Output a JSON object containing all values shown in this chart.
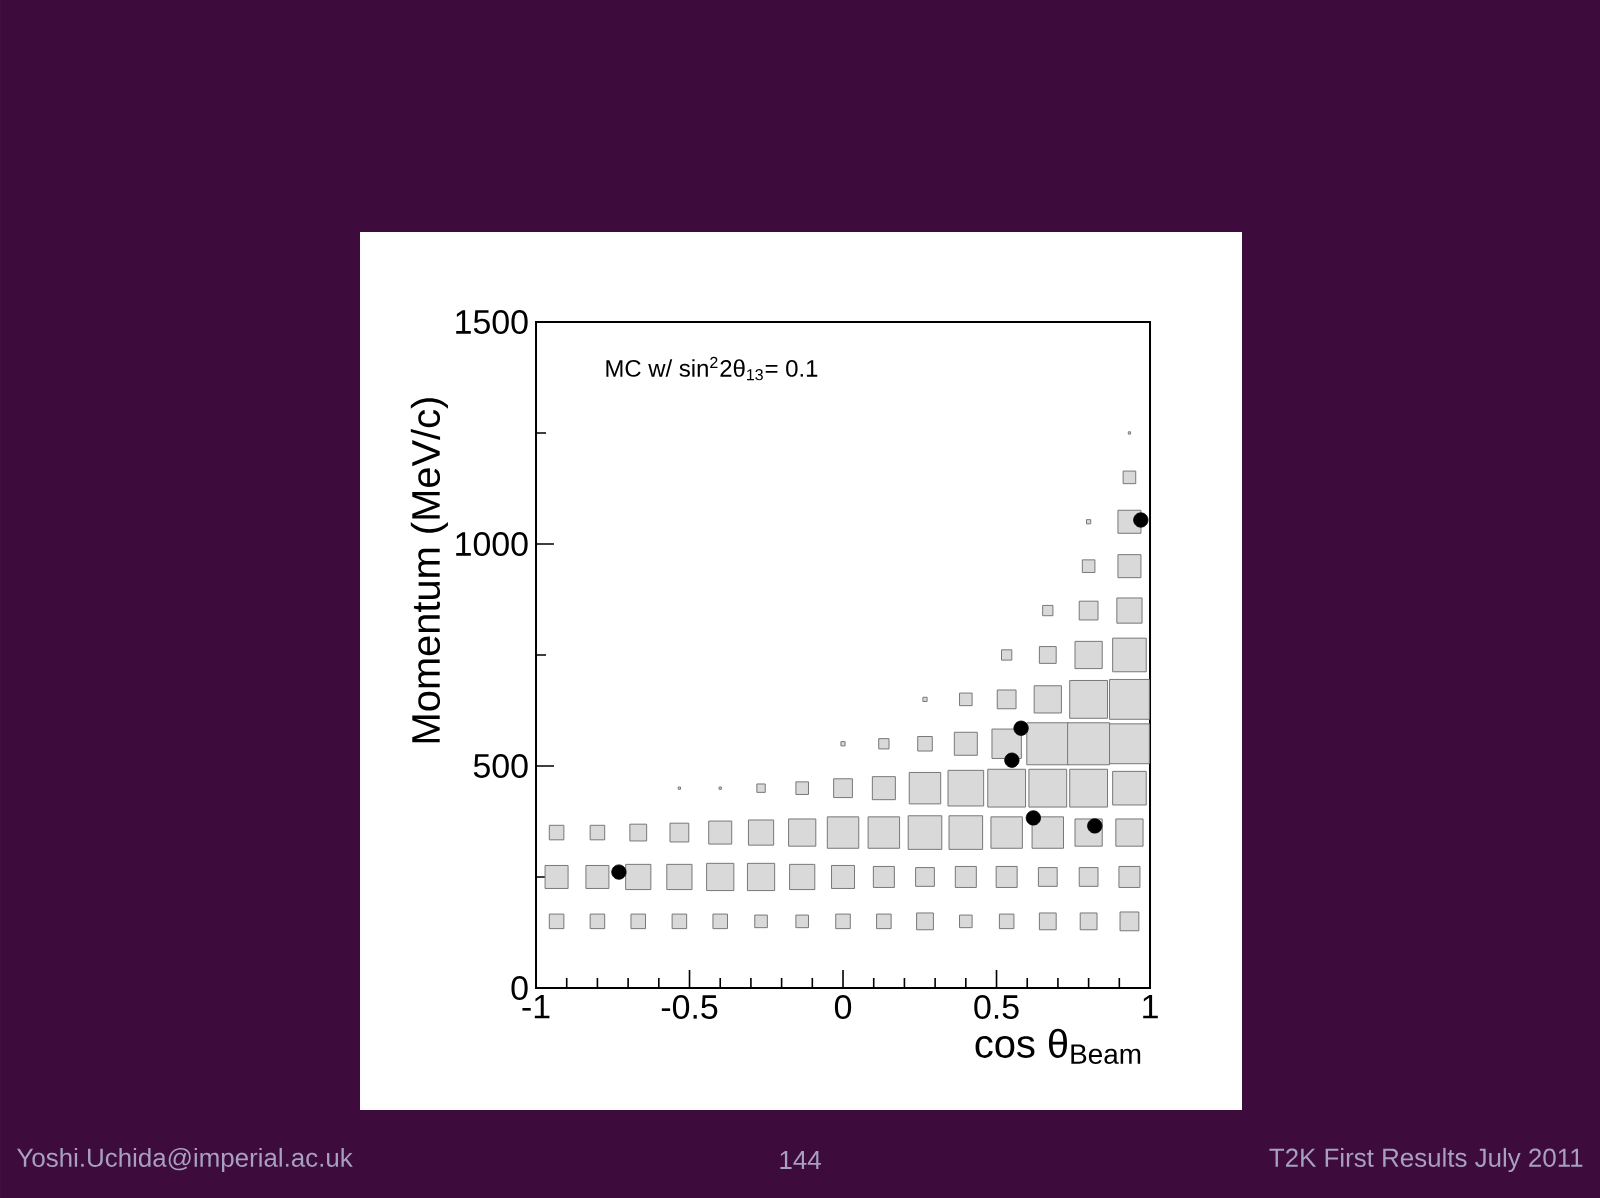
{
  "chart_data": {
    "type": "bubble",
    "xlabel": "cos θ$_{Beam}$",
    "ylabel": "Momentum (MeV/c)",
    "annotations": [
      "MC w/ sin$^{2}$2θ$_{13}$= 0.1",
      "Yoshi.Uchida@imperial.ac.uk",
      "144",
      "T2K First Results July 2011"
    ],
    "xlim": [
      -1,
      1
    ],
    "ylim": [
      0,
      1500
    ],
    "xticks": [
      -1,
      -0.5,
      0,
      0.5,
      1
    ],
    "yticks": [
      0,
      500,
      1000,
      1500
    ],
    "series": [
      {
        "marker": "square",
        "color": "#d9d9d9",
        "x": [
          -0.933,
          -0.8,
          -0.667,
          -0.533,
          -0.4,
          -0.267,
          -0.133,
          0,
          0.133,
          0.267,
          0.4,
          0.533,
          0.667,
          0.8,
          0.933,
          -0.933,
          -0.8,
          -0.667,
          -0.533,
          -0.4,
          -0.267,
          -0.133,
          0,
          0.133,
          0.267,
          0.4,
          0.533,
          0.667,
          0.8,
          0.933,
          -0.933,
          -0.8,
          -0.667,
          -0.533,
          -0.4,
          -0.267,
          -0.133,
          0,
          0.133,
          0.267,
          0.4,
          0.533,
          0.667,
          0.8,
          0.933,
          -0.533,
          -0.4,
          -0.267,
          -0.133,
          0,
          0.133,
          0.267,
          0.4,
          0.533,
          0.667,
          0.8,
          0.933,
          0,
          0.133,
          0.267,
          0.4,
          0.533,
          0.667,
          0.8,
          0.933,
          0.267,
          0.4,
          0.533,
          0.667,
          0.8,
          0.933,
          0.533,
          0.667,
          0.8,
          0.933,
          0.667,
          0.8,
          0.933,
          0.8,
          0.933,
          0.8,
          0.933,
          0.933,
          0.933
        ],
        "values": [
          150,
          150,
          150,
          150,
          150,
          150,
          150,
          150,
          150,
          150,
          150,
          150,
          150,
          150,
          150,
          250,
          250,
          250,
          250,
          250,
          250,
          250,
          250,
          250,
          250,
          250,
          250,
          250,
          250,
          250,
          350,
          350,
          350,
          350,
          350,
          350,
          350,
          350,
          350,
          350,
          350,
          350,
          350,
          350,
          350,
          450,
          450,
          450,
          450,
          450,
          450,
          450,
          450,
          450,
          450,
          450,
          450,
          550,
          550,
          550,
          550,
          550,
          550,
          550,
          550,
          650,
          650,
          650,
          650,
          650,
          650,
          750,
          750,
          750,
          750,
          850,
          850,
          850,
          950,
          950,
          1050,
          1050,
          1150,
          1250
        ],
        "sizes": [
          0.12,
          0.12,
          0.12,
          0.12,
          0.12,
          0.09,
          0.09,
          0.12,
          0.12,
          0.16,
          0.09,
          0.12,
          0.16,
          0.16,
          0.2,
          0.3,
          0.3,
          0.36,
          0.36,
          0.42,
          0.42,
          0.36,
          0.3,
          0.25,
          0.2,
          0.25,
          0.25,
          0.2,
          0.2,
          0.25,
          0.12,
          0.12,
          0.16,
          0.2,
          0.3,
          0.36,
          0.42,
          0.56,
          0.56,
          0.64,
          0.64,
          0.56,
          0.56,
          0.42,
          0.42,
          0.003,
          0.003,
          0.04,
          0.09,
          0.2,
          0.3,
          0.56,
          0.72,
          0.81,
          0.81,
          0.81,
          0.64,
          0.01,
          0.06,
          0.12,
          0.3,
          0.49,
          1,
          1,
          0.9,
          0.01,
          0.09,
          0.2,
          0.42,
          0.81,
          0.9,
          0.06,
          0.16,
          0.42,
          0.64,
          0.06,
          0.2,
          0.36,
          0.09,
          0.3,
          0.01,
          0.3,
          0.09,
          0.003
        ]
      },
      {
        "type": "scatter",
        "marker": "circle",
        "color": "#000000",
        "x": [
          -0.73,
          0.58,
          0.55,
          0.62,
          0.82,
          0.97
        ],
        "values": [
          261,
          585,
          513,
          383,
          365,
          1054
        ]
      }
    ]
  }
}
